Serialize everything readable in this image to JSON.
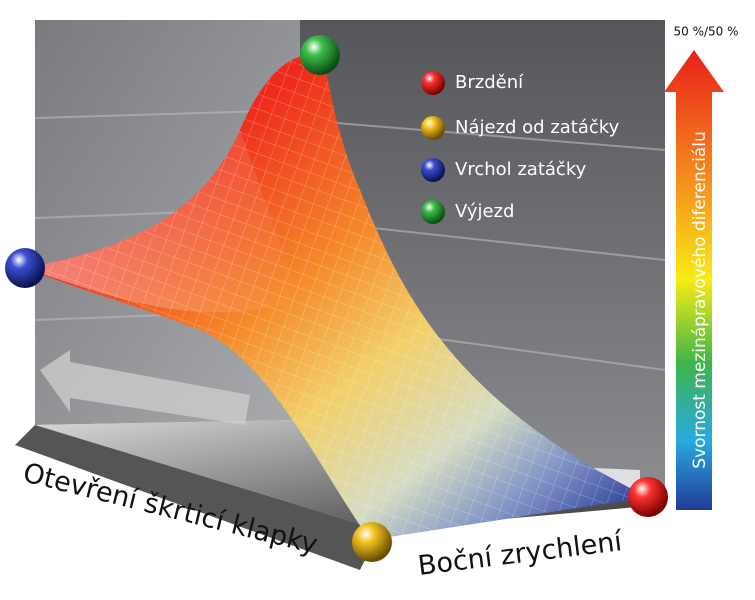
{
  "top_label": "50 %/50 %",
  "colorbar_label": "Svornost mezinápravového diferenciálu",
  "legend": {
    "items": [
      {
        "label": "Brzdění"
      },
      {
        "label": "Nájezd od zatáčky"
      },
      {
        "label": "Vrchol zatáčky"
      },
      {
        "label": "Výjezd"
      }
    ]
  },
  "axes": {
    "left_label": "Otevření škrticí klapky",
    "right_label": "Boční zrychlení"
  }
}
